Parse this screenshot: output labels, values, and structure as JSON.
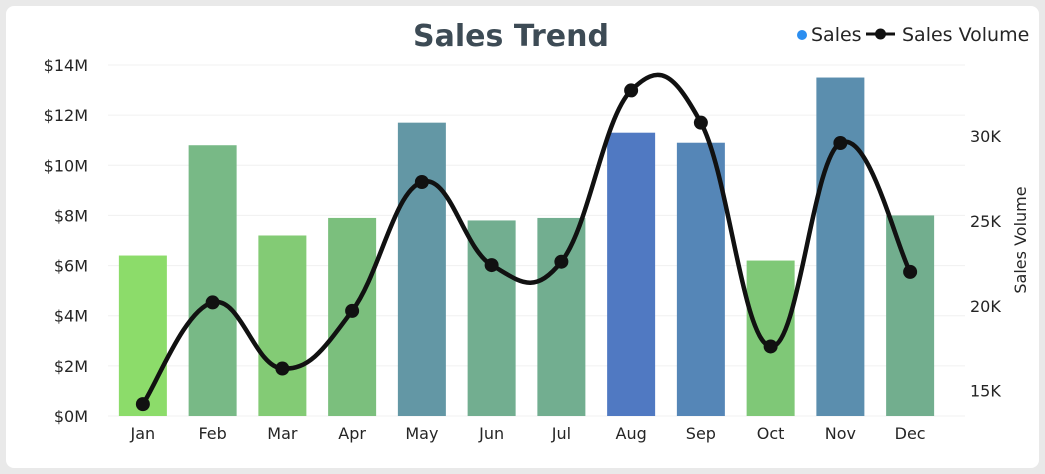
{
  "chart_data": {
    "type": "bar",
    "title": "Sales Trend",
    "categories": [
      "Jan",
      "Feb",
      "Mar",
      "Apr",
      "May",
      "Jun",
      "Jul",
      "Aug",
      "Sep",
      "Oct",
      "Nov",
      "Dec"
    ],
    "series": [
      {
        "name": "Sales",
        "type": "bar",
        "axis": "left",
        "values": [
          6.4,
          10.8,
          7.2,
          7.9,
          11.7,
          7.8,
          7.9,
          11.3,
          10.9,
          6.2,
          13.5,
          8.0
        ],
        "colors": [
          "#8cdc6a",
          "#78b986",
          "#83cb75",
          "#7bbf7d",
          "#6397a5",
          "#72ae90",
          "#72ae90",
          "#5079c2",
          "#5586b7",
          "#7fc877",
          "#5b8eae",
          "#72ae8e"
        ]
      },
      {
        "name": "Sales Volume",
        "type": "line",
        "axis": "right",
        "values": [
          14200,
          20200,
          16300,
          19700,
          27300,
          22400,
          22600,
          32700,
          30800,
          17600,
          29600,
          22000
        ],
        "color": "#111111"
      }
    ],
    "y_left": {
      "ticks": [
        "$0M",
        "$2M",
        "$4M",
        "$6M",
        "$8M",
        "$10M",
        "$12M",
        "$14M"
      ],
      "range": [
        0,
        14
      ]
    },
    "y_right": {
      "label": "Sales Volume",
      "ticks": [
        "15K",
        "20K",
        "25K",
        "30K"
      ],
      "tick_values": [
        15000,
        20000,
        25000,
        30000
      ],
      "range": [
        13500,
        34200
      ]
    },
    "legend_position": "top-right",
    "legend_dot_color": "#2b8ef0"
  }
}
